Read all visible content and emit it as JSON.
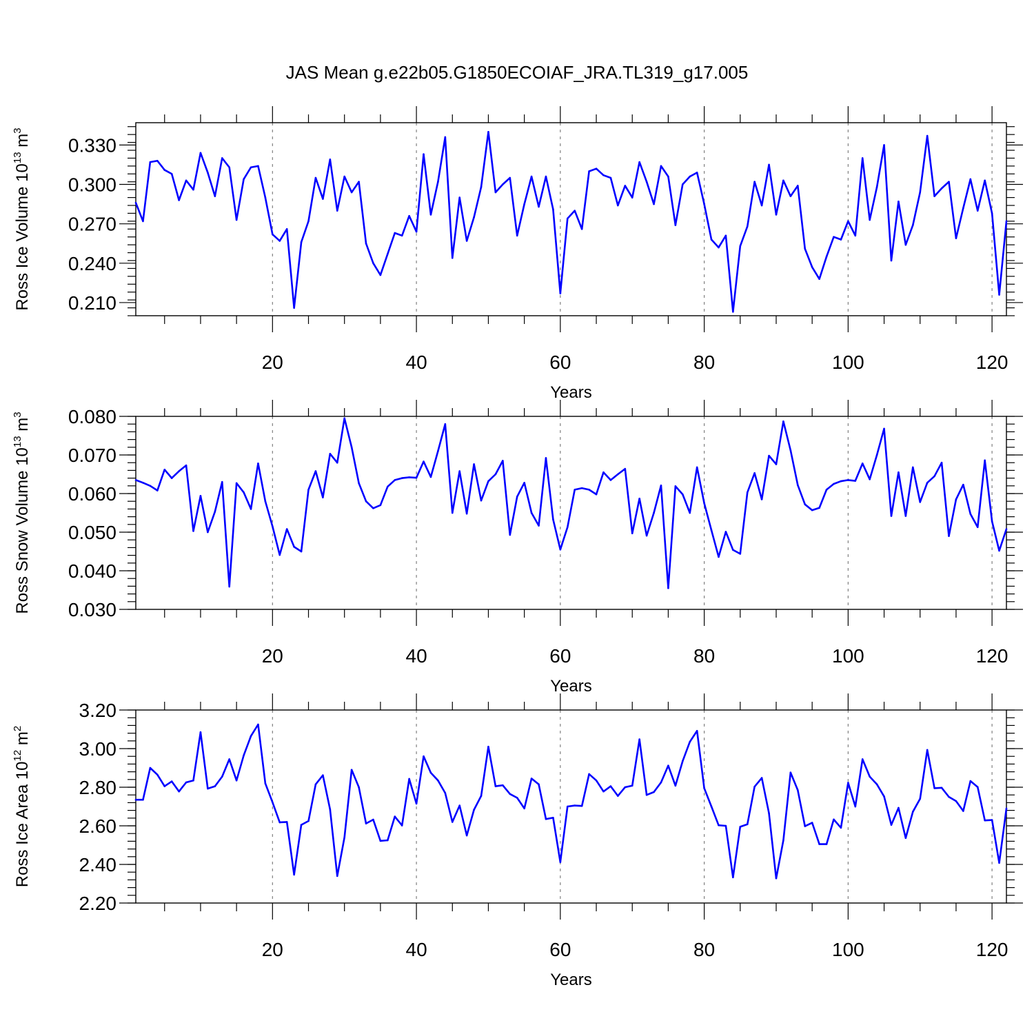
{
  "figure_title": "JAS Mean g.e22b05.G1850ECOIAF_JRA.TL319_g17.005",
  "colors": {
    "line": "#0000ff",
    "axis": "#000000",
    "grid": "#808080"
  },
  "chart_data": [
    {
      "type": "line",
      "title": "",
      "xlabel": "Years",
      "ylabel_main": "Ross Ice Volume 10",
      "ylabel_exp": "13",
      "ylabel_unit": " m",
      "ylabel_unit_exp": "3",
      "xlim": [
        1,
        122
      ],
      "ylim": [
        0.2,
        0.347
      ],
      "xticks": [
        20,
        40,
        60,
        80,
        100,
        120
      ],
      "xtick_labels": [
        "20",
        "40",
        "60",
        "80",
        "100",
        "120"
      ],
      "yticks": [
        0.21,
        0.24,
        0.27,
        0.3,
        0.33
      ],
      "ytick_labels": [
        "0.210",
        "0.240",
        "0.270",
        "0.300",
        "0.330"
      ],
      "minor_y_step": 0.006,
      "x_start": 1,
      "values": [
        0.286,
        0.272,
        0.317,
        0.318,
        0.311,
        0.308,
        0.288,
        0.303,
        0.296,
        0.324,
        0.309,
        0.291,
        0.32,
        0.313,
        0.273,
        0.304,
        0.313,
        0.314,
        0.29,
        0.262,
        0.257,
        0.266,
        0.206,
        0.256,
        0.272,
        0.305,
        0.289,
        0.319,
        0.28,
        0.306,
        0.294,
        0.302,
        0.255,
        0.24,
        0.231,
        0.247,
        0.263,
        0.261,
        0.276,
        0.264,
        0.323,
        0.277,
        0.302,
        0.336,
        0.244,
        0.29,
        0.257,
        0.275,
        0.298,
        0.34,
        0.294,
        0.3,
        0.305,
        0.261,
        0.285,
        0.306,
        0.283,
        0.306,
        0.281,
        0.217,
        0.274,
        0.28,
        0.266,
        0.31,
        0.312,
        0.307,
        0.305,
        0.284,
        0.299,
        0.29,
        0.317,
        0.302,
        0.285,
        0.314,
        0.306,
        0.269,
        0.3,
        0.306,
        0.309,
        0.285,
        0.258,
        0.252,
        0.261,
        0.203,
        0.253,
        0.268,
        0.302,
        0.284,
        0.315,
        0.277,
        0.303,
        0.291,
        0.299,
        0.251,
        0.237,
        0.228,
        0.245,
        0.26,
        0.258,
        0.272,
        0.261,
        0.32,
        0.273,
        0.298,
        0.33,
        0.242,
        0.287,
        0.254,
        0.269,
        0.294,
        0.337,
        0.291,
        0.297,
        0.302,
        0.259,
        0.282,
        0.304,
        0.28,
        0.303,
        0.278,
        0.216,
        0.272
      ]
    },
    {
      "type": "line",
      "title": "",
      "xlabel": "Years",
      "ylabel_main": "Ross Snow Volume 10",
      "ylabel_exp": "13",
      "ylabel_unit": " m",
      "ylabel_unit_exp": "3",
      "xlim": [
        1,
        122
      ],
      "ylim": [
        0.03,
        0.08
      ],
      "xticks": [
        20,
        40,
        60,
        80,
        100,
        120
      ],
      "xtick_labels": [
        "20",
        "40",
        "60",
        "80",
        "100",
        "120"
      ],
      "yticks": [
        0.03,
        0.04,
        0.05,
        0.06,
        0.07,
        0.08
      ],
      "ytick_labels": [
        "0.030",
        "0.040",
        "0.050",
        "0.060",
        "0.070",
        "0.080"
      ],
      "minor_y_step": 0.002,
      "x_start": 1,
      "values": [
        0.0635,
        0.0628,
        0.062,
        0.0608,
        0.0662,
        0.064,
        0.0658,
        0.0673,
        0.0503,
        0.0594,
        0.05,
        0.0553,
        0.063,
        0.0359,
        0.0627,
        0.0603,
        0.056,
        0.0678,
        0.058,
        0.0515,
        0.0441,
        0.0508,
        0.0462,
        0.045,
        0.061,
        0.0658,
        0.059,
        0.0703,
        0.068,
        0.0795,
        0.072,
        0.0627,
        0.058,
        0.0562,
        0.057,
        0.0618,
        0.0635,
        0.064,
        0.0642,
        0.0641,
        0.0683,
        0.0643,
        0.071,
        0.078,
        0.055,
        0.0658,
        0.0548,
        0.0676,
        0.0582,
        0.0632,
        0.065,
        0.0685,
        0.0493,
        0.0592,
        0.0628,
        0.055,
        0.0517,
        0.0692,
        0.0533,
        0.0455,
        0.0513,
        0.061,
        0.0614,
        0.061,
        0.0598,
        0.0655,
        0.0635,
        0.065,
        0.0664,
        0.0497,
        0.0587,
        0.0491,
        0.055,
        0.0621,
        0.0355,
        0.0619,
        0.0598,
        0.055,
        0.0668,
        0.0575,
        0.0505,
        0.0436,
        0.0501,
        0.0454,
        0.0444,
        0.0603,
        0.0653,
        0.0585,
        0.0698,
        0.0676,
        0.0787,
        0.0712,
        0.0622,
        0.0572,
        0.0557,
        0.0563,
        0.061,
        0.0625,
        0.0632,
        0.0635,
        0.0633,
        0.0678,
        0.0637,
        0.07,
        0.0768,
        0.0542,
        0.0655,
        0.0542,
        0.0668,
        0.0578,
        0.0628,
        0.0645,
        0.068,
        0.049,
        0.0585,
        0.0623,
        0.0547,
        0.0513,
        0.0686,
        0.0528,
        0.0452,
        0.0508
      ]
    },
    {
      "type": "line",
      "title": "",
      "xlabel": "Years",
      "ylabel_main": "Ross Ice Area 10",
      "ylabel_exp": "12",
      "ylabel_unit": " m",
      "ylabel_unit_exp": "2",
      "xlim": [
        1,
        122
      ],
      "ylim": [
        2.2,
        3.2
      ],
      "xticks": [
        20,
        40,
        60,
        80,
        100,
        120
      ],
      "xtick_labels": [
        "20",
        "40",
        "60",
        "80",
        "100",
        "120"
      ],
      "yticks": [
        2.2,
        2.4,
        2.6,
        2.8,
        3.0,
        3.2
      ],
      "ytick_labels": [
        "2.20",
        "2.40",
        "2.60",
        "2.80",
        "3.00",
        "3.20"
      ],
      "minor_y_step": 0.04,
      "x_start": 1,
      "values": [
        2.735,
        2.735,
        2.9,
        2.865,
        2.805,
        2.83,
        2.778,
        2.825,
        2.835,
        3.085,
        2.793,
        2.805,
        2.855,
        2.945,
        2.835,
        2.965,
        3.065,
        3.125,
        2.82,
        2.722,
        2.618,
        2.62,
        2.347,
        2.605,
        2.625,
        2.815,
        2.862,
        2.685,
        2.34,
        2.54,
        2.89,
        2.8,
        2.612,
        2.632,
        2.522,
        2.525,
        2.648,
        2.602,
        2.843,
        2.715,
        2.96,
        2.875,
        2.835,
        2.77,
        2.62,
        2.705,
        2.55,
        2.683,
        2.755,
        3.01,
        2.805,
        2.81,
        2.765,
        2.745,
        2.69,
        2.845,
        2.815,
        2.635,
        2.642,
        2.412,
        2.7,
        2.705,
        2.703,
        2.868,
        2.835,
        2.778,
        2.805,
        2.755,
        2.8,
        2.808,
        3.048,
        2.76,
        2.775,
        2.825,
        2.912,
        2.808,
        2.935,
        3.035,
        3.092,
        2.795,
        2.7,
        2.603,
        2.6,
        2.333,
        2.595,
        2.608,
        2.803,
        2.848,
        2.665,
        2.328,
        2.525,
        2.876,
        2.785,
        2.598,
        2.616,
        2.505,
        2.505,
        2.633,
        2.59,
        2.823,
        2.7,
        2.945,
        2.855,
        2.815,
        2.752,
        2.605,
        2.693,
        2.537,
        2.673,
        2.74,
        2.993,
        2.795,
        2.797,
        2.75,
        2.728,
        2.677,
        2.832,
        2.801,
        2.628,
        2.63,
        2.408,
        2.69
      ]
    }
  ]
}
